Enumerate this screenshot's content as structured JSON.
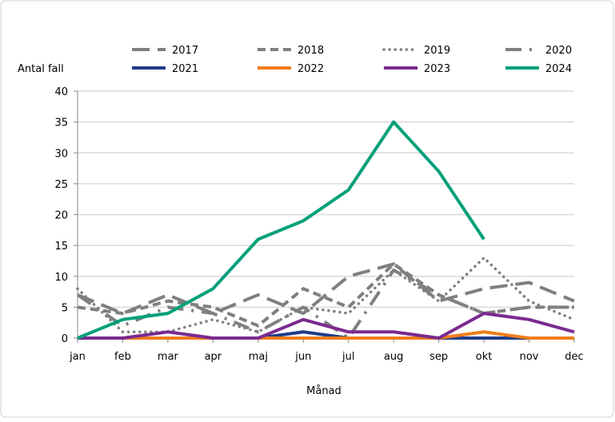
{
  "chart_data": {
    "type": "line",
    "ylabel": "Antal fall",
    "xlabel": "Månad",
    "ylim": [
      0,
      40
    ],
    "yticks": [
      0,
      5,
      10,
      15,
      20,
      25,
      30,
      35,
      40
    ],
    "grid": "horizontal",
    "legend": "top",
    "categories": [
      "jan",
      "feb",
      "mar",
      "apr",
      "maj",
      "jun",
      "jul",
      "aug",
      "sep",
      "okt",
      "nov",
      "dec"
    ],
    "series": [
      {
        "name": "2017",
        "color": "#7f7f7f",
        "style": "longdash",
        "values": [
          7,
          4,
          7,
          4,
          7,
          4,
          10,
          12,
          6,
          8,
          9,
          6
        ]
      },
      {
        "name": "2018",
        "color": "#7f7f7f",
        "style": "dash",
        "values": [
          5,
          4,
          6,
          5,
          2,
          8,
          5,
          12,
          7,
          4,
          5,
          5
        ]
      },
      {
        "name": "2019",
        "color": "#7f7f7f",
        "style": "dot",
        "values": [
          8,
          1,
          1,
          3,
          1,
          5,
          4,
          11,
          6,
          13,
          6,
          3
        ]
      },
      {
        "name": "2020",
        "color": "#7f7f7f",
        "style": "dashdot",
        "values": [
          7,
          2,
          5,
          4,
          1,
          5,
          0,
          11,
          7,
          4,
          5,
          5
        ]
      },
      {
        "name": "2021",
        "color": "#1f3c88",
        "style": "solid",
        "values": [
          0,
          0,
          0,
          0,
          0,
          1,
          0,
          0,
          0,
          0,
          0,
          0
        ]
      },
      {
        "name": "2022",
        "color": "#f07d1a",
        "style": "solid",
        "values": [
          0,
          0,
          0,
          0,
          0,
          0,
          0,
          0,
          0,
          1,
          0,
          0
        ]
      },
      {
        "name": "2023",
        "color": "#7b2a8f",
        "style": "solid",
        "values": [
          0,
          0,
          1,
          0,
          0,
          3,
          1,
          1,
          0,
          4,
          3,
          1
        ]
      },
      {
        "name": "2024",
        "color": "#00a07a",
        "style": "solid",
        "values": [
          0,
          3,
          4,
          8,
          16,
          19,
          24,
          35,
          27,
          16,
          null,
          null
        ]
      }
    ]
  }
}
